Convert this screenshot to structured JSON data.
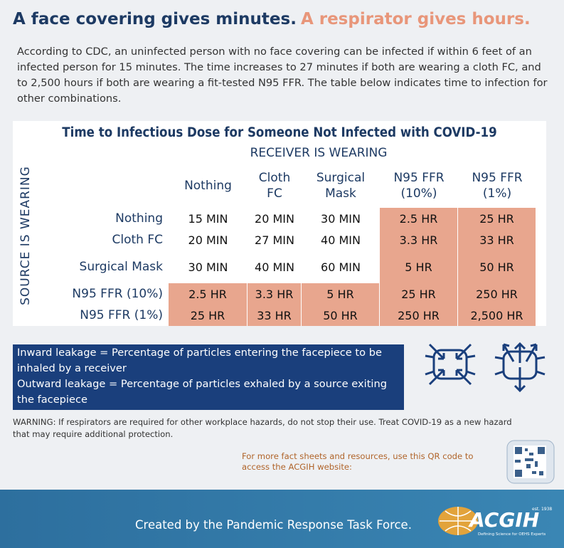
{
  "header": {
    "title": "A face covering gives minutes.",
    "title_accent": "A respirator gives hours."
  },
  "intro": "According to CDC, an uninfected person with no face covering can be infected if within 6 feet of an infected person for 15 minutes. The time increases to 27 minutes if both are wearing a cloth FC, and to 2,500 hours if both are wearing a fit-tested N95 FFR. The table below indicates time to infection for other combinations.",
  "table": {
    "title": "Time to Infectious Dose for Someone Not Infected with COVID-19",
    "column_group": "RECEIVER IS WEARING",
    "row_group": "SOURCE IS WEARING",
    "columns": [
      "Nothing",
      "Cloth FC",
      "Surgical Mask",
      "N95 FFR (10%)",
      "N95 FFR (1%)"
    ],
    "rows": [
      {
        "label": "Nothing",
        "cells": [
          "15 MIN",
          "20 MIN",
          "30 MIN",
          "2.5 HR",
          "25 HR"
        ]
      },
      {
        "label": "Cloth FC",
        "cells": [
          "20 MIN",
          "27 MIN",
          "40 MIN",
          "3.3 HR",
          "33 HR"
        ]
      },
      {
        "label": "Surgical Mask",
        "cells": [
          "30 MIN",
          "40 MIN",
          "60 MIN",
          "5 HR",
          "50 HR"
        ]
      },
      {
        "label": "N95 FFR (10%)",
        "cells": [
          "2.5 HR",
          "3.3 HR",
          "5 HR",
          "25 HR",
          "250 HR"
        ]
      },
      {
        "label": "N95 FFR (1%)",
        "cells": [
          "25 HR",
          "33 HR",
          "50 HR",
          "250 HR",
          "2,500 HR"
        ]
      }
    ]
  },
  "legend": [
    "Inward leakage = Percentage of particles entering the facepiece to be inhaled by a receiver",
    "Outward leakage = Percentage of particles exhaled by a source exiting the facepiece"
  ],
  "warning": "WARNING: If respirators are required for other workplace hazards, do not stop their use. Treat COVID-19 as a new hazard that may require additional protection.",
  "qr_note": "For more fact sheets and resources, use this QR code to access the ACGIH website:",
  "footer": {
    "credit": "Created by the Pandemic Response Task Force.",
    "logo": "ACGIH",
    "est": "est. 1938",
    "tagline": "Defining Science for OEHS Experts"
  }
}
